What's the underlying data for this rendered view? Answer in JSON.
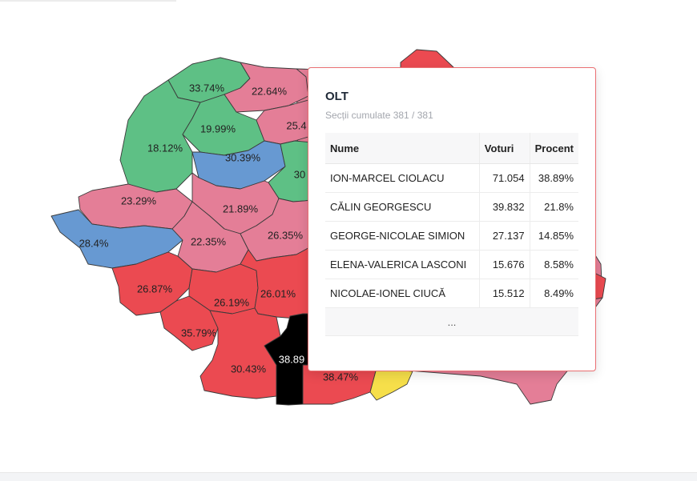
{
  "colors": {
    "psd_red": "#eb4a51",
    "aur_pink": "#e47e97",
    "udmr_green": "#5ec085",
    "usr_blue": "#6799d2",
    "pnl_yellow": "#f6df4a",
    "selected": "#000000",
    "tooltip_border": "#ea6f72"
  },
  "map_labels": [
    "33.74%",
    "22.64%",
    "19.99%",
    "25.4",
    "18.12%",
    "30.39%",
    "30",
    "23.29%",
    "21.89%",
    "28.4%",
    "22.35%",
    "26.35%",
    "26.87%",
    "26.19%",
    "26.01%",
    "35.79%",
    "38.89",
    "30.43%",
    "38.47%"
  ],
  "tooltip": {
    "county": "OLT",
    "sections": "Secții cumulate 381 / 381",
    "headers": [
      "Nume",
      "Voturi",
      "Procent"
    ],
    "rows": [
      [
        "ION-MARCEL CIOLACU",
        "71.054",
        "38.89%"
      ],
      [
        "CĂLIN GEORGESCU",
        "39.832",
        "21.8%"
      ],
      [
        "GEORGE-NICOLAE SIMION",
        "27.137",
        "14.85%"
      ],
      [
        "ELENA-VALERICA LASCONI",
        "15.676",
        "8.58%"
      ],
      [
        "NICOLAE-IONEL CIUCĂ",
        "15.512",
        "8.49%"
      ]
    ],
    "more": "..."
  }
}
